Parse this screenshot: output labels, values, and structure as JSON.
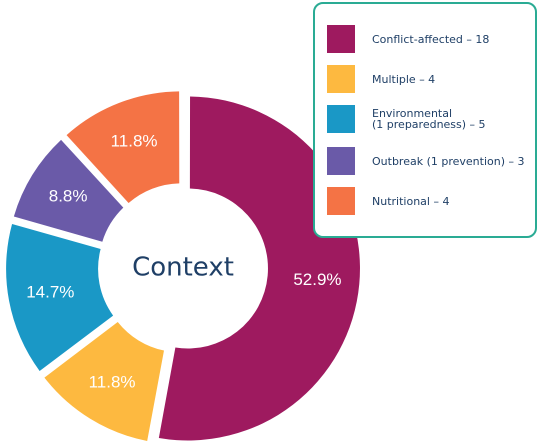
{
  "chart_data": {
    "type": "donut",
    "center_label": "Context",
    "categories": [
      "Conflict-affected – 18",
      "Multiple – 4",
      "Environmental\n(1 preparedness) – 5",
      "Outbreak (1 prevention) – 3",
      "Nutritional  – 4"
    ],
    "values": [
      52.9,
      11.8,
      14.7,
      8.8,
      11.8
    ],
    "value_labels": [
      "52.9%",
      "11.8%",
      "14.7%",
      "8.8%",
      "11.8%"
    ],
    "colors": [
      "#9e1a5f",
      "#fdb940",
      "#1a98c6",
      "#6a5aa8",
      "#f47345"
    ]
  }
}
